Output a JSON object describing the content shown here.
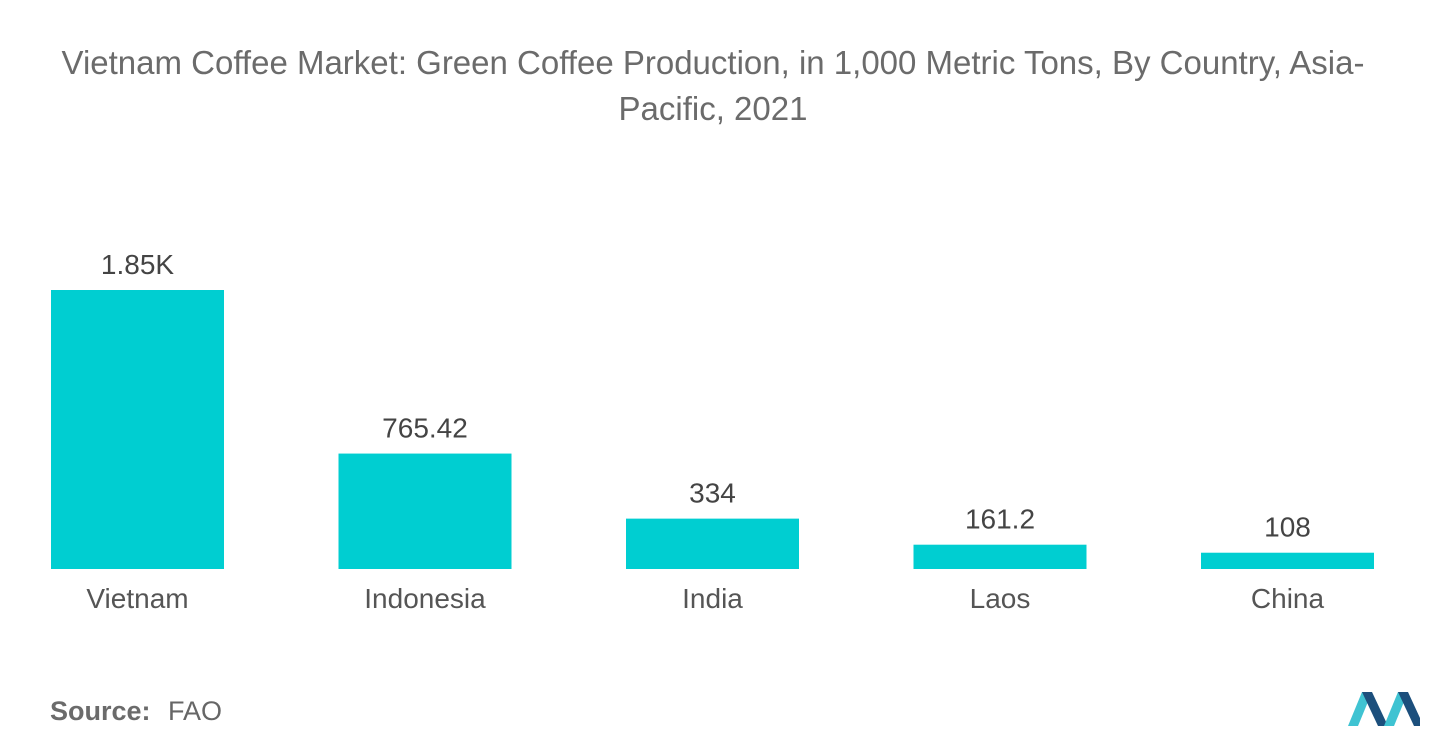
{
  "title": "Vietnam Coffee Market: Green Coffee Production, in 1,000 Metric Tons, By Country, Asia-Pacific, 2021",
  "source": {
    "label": "Source:",
    "value": "FAO"
  },
  "colors": {
    "bar": "#00ced1",
    "logo_dark": "#1c4f7c",
    "logo_light": "#3fc3d2"
  },
  "chart_data": {
    "type": "bar",
    "title": "Vietnam Coffee Market: Green Coffee Production, in 1,000 Metric Tons, By Country, Asia-Pacific, 2021",
    "categories": [
      "Vietnam",
      "Indonesia",
      "India",
      "Laos",
      "China"
    ],
    "values": [
      1850,
      765.42,
      334,
      161.2,
      108
    ],
    "value_labels": [
      "1.85K",
      "765.42",
      "334",
      "161.2",
      "108"
    ],
    "xlabel": "",
    "ylabel": "",
    "ylim": [
      0,
      1850
    ],
    "grid": false,
    "legend": "none"
  }
}
